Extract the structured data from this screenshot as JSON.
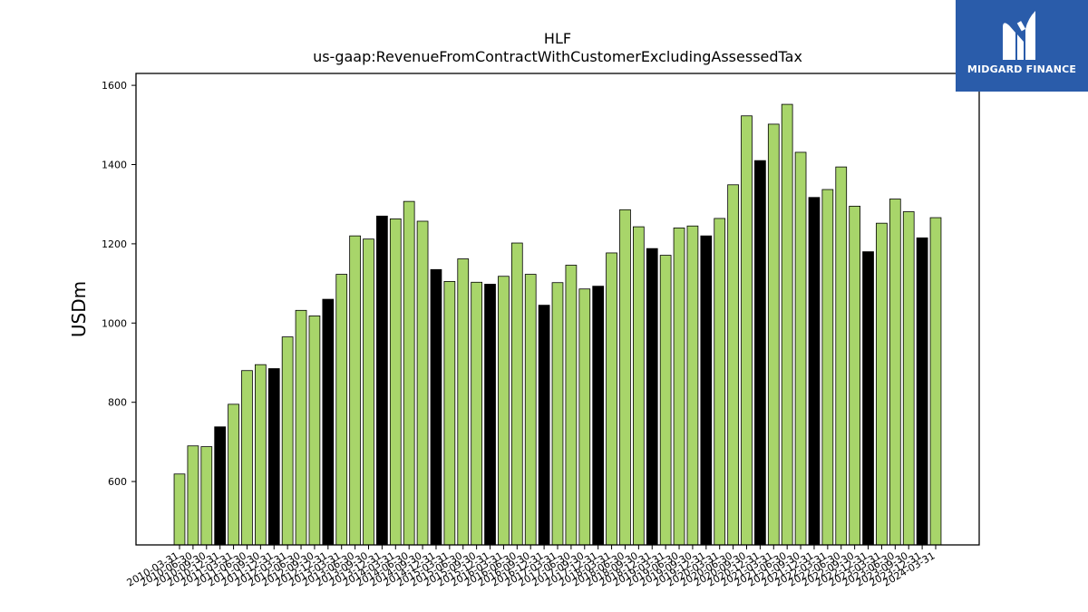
{
  "chart_data": {
    "type": "bar",
    "title": "HLF",
    "subtitle": "us-gaap:RevenueFromContractWithCustomerExcludingAssessedTax",
    "xlabel": "",
    "ylabel": "USDm",
    "ylim": [
      440,
      1630
    ],
    "yticks": [
      600,
      800,
      1000,
      1200,
      1400,
      1600
    ],
    "grid": false,
    "colors": {
      "quarter": "#a8d56a",
      "fiscal_year_end": "#000000",
      "edge": "#000000"
    },
    "categories": [
      "2010-03-31",
      "2010-06-30",
      "2010-09-30",
      "2010-12-31",
      "2011-03-31",
      "2011-06-30",
      "2011-09-30",
      "2011-12-31",
      "2012-03-31",
      "2012-06-30",
      "2012-09-30",
      "2012-12-31",
      "2013-03-31",
      "2013-06-30",
      "2013-09-30",
      "2013-12-31",
      "2014-03-31",
      "2014-06-30",
      "2014-09-30",
      "2014-12-31",
      "2015-03-31",
      "2015-06-30",
      "2015-09-30",
      "2015-12-31",
      "2016-03-31",
      "2016-06-30",
      "2016-09-30",
      "2016-12-31",
      "2017-03-31",
      "2017-06-30",
      "2017-09-30",
      "2017-12-31",
      "2018-03-31",
      "2018-06-30",
      "2018-09-30",
      "2018-12-31",
      "2019-03-31",
      "2019-06-30",
      "2019-09-30",
      "2019-12-31",
      "2020-03-31",
      "2020-06-30",
      "2020-09-30",
      "2020-12-31",
      "2021-03-31",
      "2021-06-30",
      "2021-09-30",
      "2021-12-31",
      "2022-03-31",
      "2022-06-30",
      "2022-09-30",
      "2022-12-31",
      "2023-03-31",
      "2023-06-30",
      "2023-09-30",
      "2023-12-31",
      "2024-03-31"
    ],
    "values": [
      619,
      690,
      688,
      738,
      795,
      880,
      895,
      885,
      965,
      1032,
      1018,
      1060,
      1123,
      1220,
      1212,
      1270,
      1263,
      1307,
      1257,
      1135,
      1105,
      1162,
      1103,
      1098,
      1118,
      1202,
      1123,
      1045,
      1102,
      1146,
      1086,
      1093,
      1177,
      1286,
      1243,
      1188,
      1171,
      1240,
      1245,
      1220,
      1264,
      1349,
      1523,
      1410,
      1502,
      1552,
      1431,
      1317,
      1337,
      1394,
      1295,
      1180,
      1252,
      1313,
      1281,
      1215,
      1266
    ],
    "fiscal_year_end": [
      false,
      false,
      false,
      true,
      false,
      false,
      false,
      true,
      false,
      false,
      false,
      true,
      false,
      false,
      false,
      true,
      false,
      false,
      false,
      true,
      false,
      false,
      false,
      true,
      false,
      false,
      false,
      true,
      false,
      false,
      false,
      true,
      false,
      false,
      false,
      true,
      false,
      false,
      false,
      true,
      false,
      false,
      false,
      true,
      false,
      false,
      false,
      true,
      false,
      false,
      false,
      true,
      false,
      false,
      false,
      true,
      false
    ]
  },
  "logo": {
    "text": "MIDGARD FINANCE",
    "color": "#2a5caa"
  }
}
